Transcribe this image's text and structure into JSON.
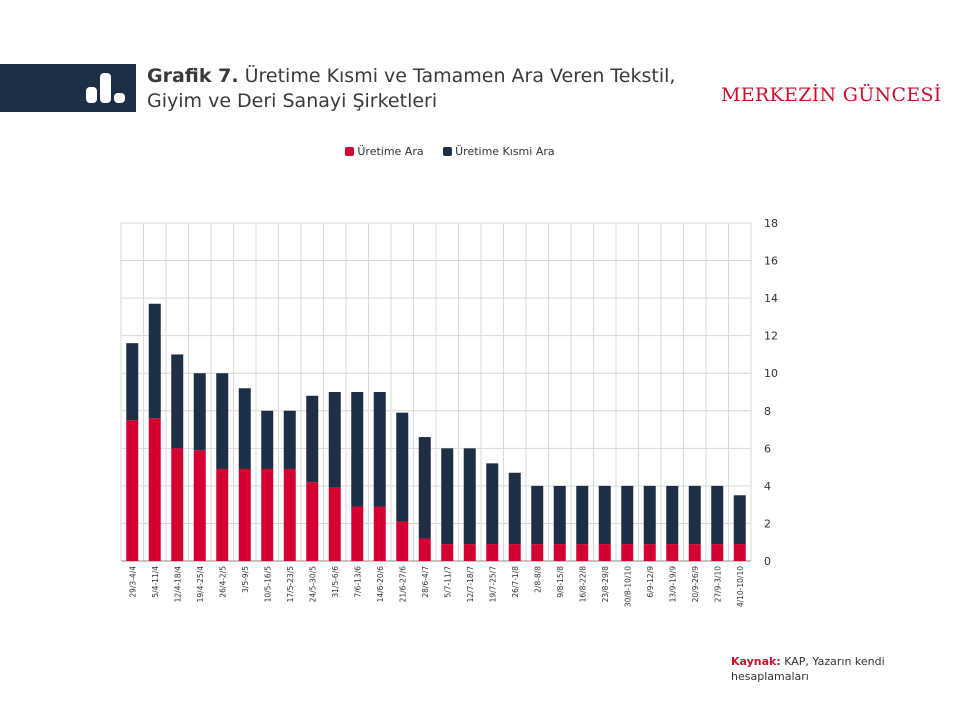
{
  "header": {
    "title_prefix": "Grafik 7.",
    "title_text": "Üretime Kısmi ve Tamamen Ara Veren Tekstil, Giyim ve Deri Sanayi Şirketleri",
    "brand": "MERKEZİN GÜNCESİ",
    "icon": "bar-chart-icon",
    "band_color": "#1e2e45"
  },
  "source": {
    "label": "Kaynak:",
    "text": "KAP, Yazarın kendi hesaplamaları"
  },
  "chart_data": {
    "type": "bar",
    "stacked": true,
    "categories": [
      "29/3-4/4",
      "5/4-11/4",
      "12/4-18/4",
      "19/4-25/4",
      "26/4-2/5",
      "3/5-9/5",
      "10/5-16/5",
      "17/5-23/5",
      "24/5-30/5",
      "31/5-6/6",
      "7/6-13/6",
      "14/6-20/6",
      "21/6-27/6",
      "28/6-4/7",
      "5/7-11/7",
      "12/7-18/7",
      "19/7-25/7",
      "26/7-1/8",
      "2/8-8/8",
      "9/8-15/8",
      "16/8-22/8",
      "23/8-29/8",
      "30/8-10/10",
      "6/9-12/9",
      "13/9-19/9",
      "20/9-26/9",
      "27/9-3/10",
      "4/10-10/10"
    ],
    "series": [
      {
        "name": "Üretime Ara",
        "color": "#d50032",
        "values": [
          7.5,
          7.6,
          6,
          5.9,
          4.9,
          4.9,
          4.9,
          4.9,
          4.2,
          3.9,
          2.9,
          2.9,
          2.1,
          1.2,
          0.9,
          0.9,
          0.9,
          0.9,
          0.9,
          0.9,
          0.9,
          0.9,
          0.9,
          0.9,
          0.9,
          0.9,
          0.9,
          0.9
        ]
      },
      {
        "name": "Üretime Kısmi Ara",
        "color": "#1e2e45",
        "values": [
          4.1,
          6.1,
          5,
          4.1,
          5.1,
          4.3,
          3.1,
          3.1,
          4.6,
          5.1,
          6.1,
          6.1,
          5.8,
          5.4,
          5.1,
          5.1,
          4.3,
          3.8,
          3.1,
          3.1,
          3.1,
          3.1,
          3.1,
          3.1,
          3.1,
          3.1,
          3.1,
          2.6
        ]
      }
    ],
    "ylim": [
      0,
      18
    ],
    "yticks": [
      0,
      2,
      4,
      6,
      8,
      10,
      12,
      14,
      16,
      18
    ],
    "yaxis_side": "right",
    "grid": true,
    "legend_position": "top-center"
  }
}
